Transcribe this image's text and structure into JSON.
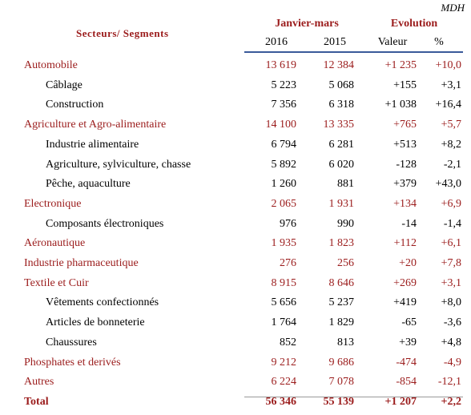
{
  "header": {
    "unit": "MDH",
    "label_column": "Secteurs/ Segments",
    "period": "Janvier-mars",
    "evolution": "Evolution",
    "columns": [
      "2016",
      "2015",
      "Valeur",
      "%"
    ]
  },
  "table": {
    "sectors": [
      {
        "label": "Automobile",
        "values": [
          "13 619",
          "12 384",
          "+1 235",
          "+10,0"
        ],
        "segments": [
          {
            "label": "Câblage",
            "values": [
              "5 223",
              "5 068",
              "+155",
              "+3,1"
            ]
          },
          {
            "label": "Construction",
            "values": [
              "7 356",
              "6 318",
              "+1 038",
              "+16,4"
            ]
          }
        ]
      },
      {
        "label": "Agriculture et Agro-alimentaire",
        "values": [
          "14 100",
          "13 335",
          "+765",
          "+5,7"
        ],
        "segments": [
          {
            "label": "Industrie alimentaire",
            "values": [
              "6 794",
              "6 281",
              "+513",
              "+8,2"
            ]
          },
          {
            "label": "Agriculture, sylviculture, chasse",
            "values": [
              "5 892",
              "6 020",
              "-128",
              "-2,1"
            ]
          },
          {
            "label": "Pêche, aquaculture",
            "values": [
              "1 260",
              "881",
              "+379",
              "+43,0"
            ]
          }
        ]
      },
      {
        "label": "Electronique",
        "values": [
          "2 065",
          "1 931",
          "+134",
          "+6,9"
        ],
        "segments": [
          {
            "label": "Composants électroniques",
            "values": [
              "976",
              "990",
              "-14",
              "-1,4"
            ]
          }
        ]
      },
      {
        "label": "Aéronautique",
        "values": [
          "1 935",
          "1 823",
          "+112",
          "+6,1"
        ],
        "segments": []
      },
      {
        "label": "Industrie pharmaceutique",
        "values": [
          "276",
          "256",
          "+20",
          "+7,8"
        ],
        "segments": []
      },
      {
        "label": "Textile et Cuir",
        "values": [
          "8 915",
          "8 646",
          "+269",
          "+3,1"
        ],
        "segments": [
          {
            "label": "Vêtements confectionnés",
            "values": [
              "5 656",
              "5 237",
              "+419",
              "+8,0"
            ]
          },
          {
            "label": "Articles de bonneterie",
            "values": [
              "1 764",
              "1 829",
              "-65",
              "-3,6"
            ]
          },
          {
            "label": "Chaussures",
            "values": [
              "852",
              "813",
              "+39",
              "+4,8"
            ]
          }
        ]
      },
      {
        "label": "Phosphates et derivés",
        "values": [
          "9 212",
          "9 686",
          "-474",
          "-4,9"
        ],
        "segments": []
      },
      {
        "label": "Autres",
        "values": [
          "6 224",
          "7 078",
          "-854",
          "-12,1"
        ],
        "segments": []
      }
    ],
    "total": {
      "label": "Total",
      "values": [
        "56 346",
        "55 139",
        "+1 207",
        "+2,2"
      ]
    }
  }
}
